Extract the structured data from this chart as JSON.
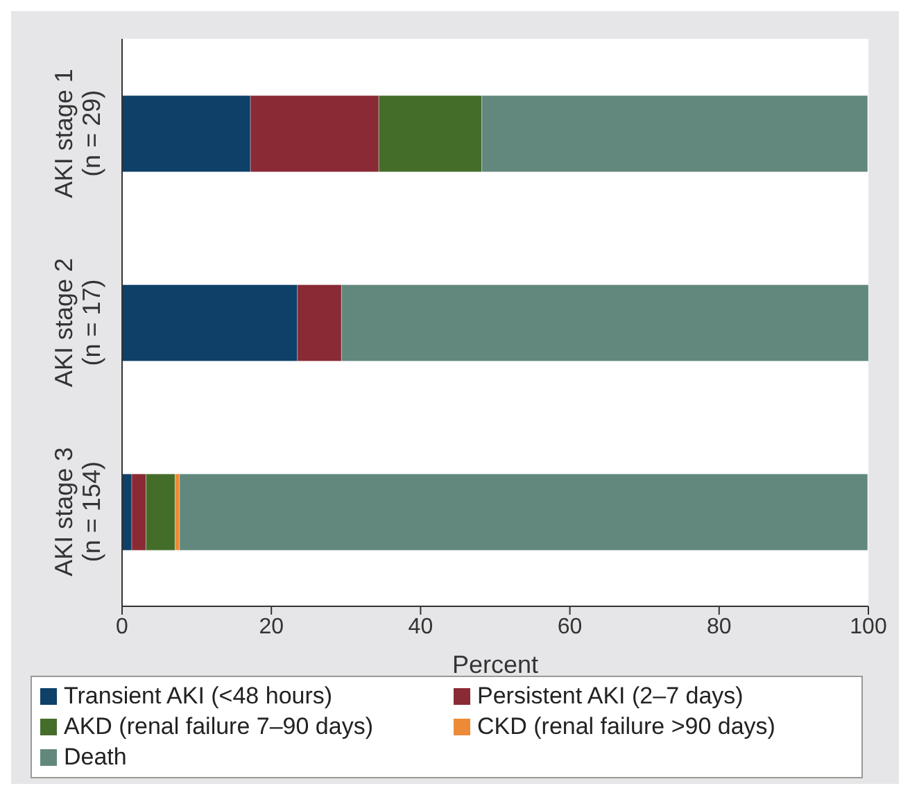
{
  "chart_data": {
    "type": "bar",
    "orientation": "horizontal",
    "stacked": true,
    "xlabel": "Percent",
    "categories": [
      "AKI stage 1\n(n = 29)",
      "AKI stage 2\n(n = 17)",
      "AKI stage 3\n(n = 154)"
    ],
    "series": [
      {
        "name": "Transient AKI (<48 hours)",
        "color": "#0e4068",
        "values": [
          17.2,
          23.5,
          1.3
        ]
      },
      {
        "name": "Persistent AKI (2–7 days)",
        "color": "#892a35",
        "values": [
          17.2,
          5.9,
          1.9
        ]
      },
      {
        "name": "AKD (renal failure 7–90 days)",
        "color": "#456d2a",
        "values": [
          13.8,
          0,
          3.9
        ]
      },
      {
        "name": "CKD (renal failure >90 days)",
        "color": "#ec8a37",
        "values": [
          0,
          0,
          0.6
        ]
      },
      {
        "name": "Death",
        "color": "#62887d",
        "values": [
          51.7,
          70.6,
          92.2
        ]
      }
    ],
    "xlim": [
      0,
      100
    ],
    "xticks": [
      0,
      20,
      40,
      60,
      80,
      100
    ],
    "grid": false,
    "legend": "bottom"
  }
}
